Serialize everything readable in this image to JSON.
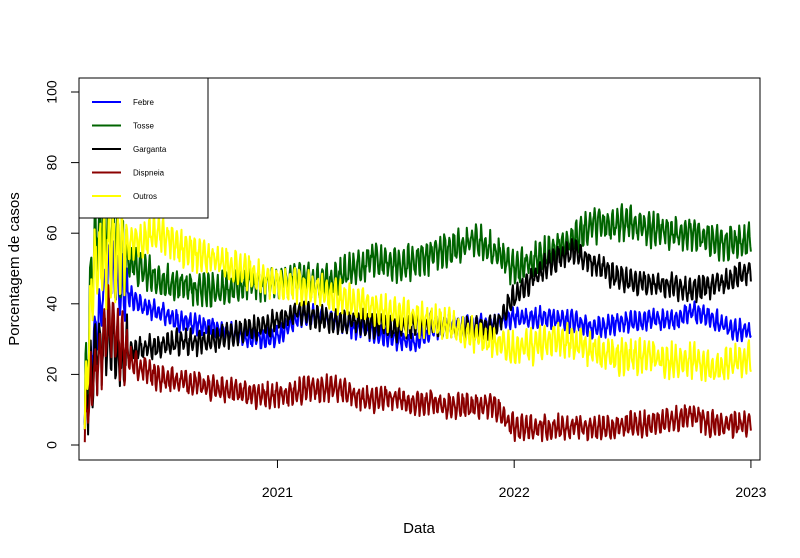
{
  "chart_data": {
    "type": "line",
    "xlabel": "Data",
    "ylabel": "Porcentagem de casos",
    "xlim": [
      "2020-03-01",
      "2023-01-15"
    ],
    "ylim": [
      0,
      100
    ],
    "x_ticks": [
      {
        "date": "2021-01-01",
        "label": "2021"
      },
      {
        "date": "2022-01-01",
        "label": "2022"
      },
      {
        "date": "2023-01-01",
        "label": "2023"
      }
    ],
    "y_ticks": [
      0,
      20,
      40,
      60,
      80,
      100
    ],
    "grid": false,
    "legend": "top-left",
    "series": [
      {
        "name": "Febre",
        "color": "#0000FF",
        "noise": 2.5,
        "points": [
          [
            "2020-03-10",
            10
          ],
          [
            "2020-03-25",
            30
          ],
          [
            "2020-04-15",
            50
          ],
          [
            "2020-05-01",
            45
          ],
          [
            "2020-06-01",
            40
          ],
          [
            "2020-07-01",
            38
          ],
          [
            "2020-08-01",
            35
          ],
          [
            "2020-09-01",
            34
          ],
          [
            "2020-10-01",
            33
          ],
          [
            "2020-11-01",
            31
          ],
          [
            "2020-12-01",
            30
          ],
          [
            "2021-01-01",
            31
          ],
          [
            "2021-02-01",
            36
          ],
          [
            "2021-03-01",
            37
          ],
          [
            "2021-04-01",
            35
          ],
          [
            "2021-05-01",
            33
          ],
          [
            "2021-06-01",
            32
          ],
          [
            "2021-07-01",
            30
          ],
          [
            "2021-08-01",
            29
          ],
          [
            "2021-09-01",
            33
          ],
          [
            "2021-10-01",
            34
          ],
          [
            "2021-11-01",
            34
          ],
          [
            "2021-12-01",
            35
          ],
          [
            "2022-01-01",
            36
          ],
          [
            "2022-02-01",
            36
          ],
          [
            "2022-03-01",
            36
          ],
          [
            "2022-04-01",
            35
          ],
          [
            "2022-05-01",
            33
          ],
          [
            "2022-06-01",
            34
          ],
          [
            "2022-07-01",
            35
          ],
          [
            "2022-08-01",
            36
          ],
          [
            "2022-09-01",
            35
          ],
          [
            "2022-10-01",
            38
          ],
          [
            "2022-11-01",
            36
          ],
          [
            "2022-12-01",
            33
          ],
          [
            "2023-01-01",
            32
          ]
        ]
      },
      {
        "name": "Tosse",
        "color": "#006400",
        "noise": 4,
        "points": [
          [
            "2020-03-10",
            10
          ],
          [
            "2020-03-25",
            60
          ],
          [
            "2020-04-15",
            62
          ],
          [
            "2020-05-01",
            55
          ],
          [
            "2020-06-01",
            50
          ],
          [
            "2020-07-01",
            47
          ],
          [
            "2020-08-01",
            45
          ],
          [
            "2020-09-01",
            44
          ],
          [
            "2020-10-01",
            44
          ],
          [
            "2020-11-01",
            45
          ],
          [
            "2020-12-01",
            46
          ],
          [
            "2021-01-01",
            46
          ],
          [
            "2021-02-01",
            48
          ],
          [
            "2021-03-01",
            46
          ],
          [
            "2021-04-01",
            47
          ],
          [
            "2021-05-01",
            50
          ],
          [
            "2021-06-01",
            53
          ],
          [
            "2021-07-01",
            51
          ],
          [
            "2021-08-01",
            52
          ],
          [
            "2021-09-01",
            54
          ],
          [
            "2021-10-01",
            56
          ],
          [
            "2021-11-01",
            58
          ],
          [
            "2021-12-01",
            55
          ],
          [
            "2022-01-01",
            50
          ],
          [
            "2022-02-01",
            52
          ],
          [
            "2022-03-01",
            55
          ],
          [
            "2022-04-01",
            58
          ],
          [
            "2022-05-01",
            62
          ],
          [
            "2022-06-01",
            63
          ],
          [
            "2022-07-01",
            63
          ],
          [
            "2022-08-01",
            61
          ],
          [
            "2022-09-01",
            60
          ],
          [
            "2022-10-01",
            60
          ],
          [
            "2022-11-01",
            58
          ],
          [
            "2022-12-01",
            57
          ],
          [
            "2023-01-01",
            58
          ]
        ]
      },
      {
        "name": "Garganta",
        "color": "#000000",
        "noise": 3,
        "points": [
          [
            "2020-03-10",
            10
          ],
          [
            "2020-03-25",
            25
          ],
          [
            "2020-04-15",
            30
          ],
          [
            "2020-05-01",
            26
          ],
          [
            "2020-06-01",
            27
          ],
          [
            "2020-07-01",
            28
          ],
          [
            "2020-08-01",
            29
          ],
          [
            "2020-09-01",
            29
          ],
          [
            "2020-10-01",
            30
          ],
          [
            "2020-11-01",
            32
          ],
          [
            "2020-12-01",
            33
          ],
          [
            "2021-01-01",
            35
          ],
          [
            "2021-02-01",
            38
          ],
          [
            "2021-03-01",
            36
          ],
          [
            "2021-04-01",
            35
          ],
          [
            "2021-05-01",
            35
          ],
          [
            "2021-06-01",
            34
          ],
          [
            "2021-07-01",
            33
          ],
          [
            "2021-08-01",
            34
          ],
          [
            "2021-09-01",
            34
          ],
          [
            "2021-10-01",
            33
          ],
          [
            "2021-11-01",
            33
          ],
          [
            "2021-12-01",
            33
          ],
          [
            "2022-01-01",
            42
          ],
          [
            "2022-02-01",
            48
          ],
          [
            "2022-03-01",
            52
          ],
          [
            "2022-04-01",
            55
          ],
          [
            "2022-05-01",
            52
          ],
          [
            "2022-06-01",
            48
          ],
          [
            "2022-07-01",
            46
          ],
          [
            "2022-08-01",
            46
          ],
          [
            "2022-09-01",
            45
          ],
          [
            "2022-10-01",
            44
          ],
          [
            "2022-11-01",
            45
          ],
          [
            "2022-12-01",
            47
          ],
          [
            "2023-01-01",
            50
          ]
        ]
      },
      {
        "name": "Dispneia",
        "color": "#8B0000",
        "noise": 3,
        "points": [
          [
            "2020-03-10",
            5
          ],
          [
            "2020-03-25",
            20
          ],
          [
            "2020-04-15",
            35
          ],
          [
            "2020-05-01",
            28
          ],
          [
            "2020-06-01",
            22
          ],
          [
            "2020-07-01",
            19
          ],
          [
            "2020-08-01",
            18
          ],
          [
            "2020-09-01",
            17
          ],
          [
            "2020-10-01",
            16
          ],
          [
            "2020-11-01",
            15
          ],
          [
            "2020-12-01",
            14
          ],
          [
            "2021-01-01",
            14
          ],
          [
            "2021-02-01",
            15
          ],
          [
            "2021-03-01",
            16
          ],
          [
            "2021-04-01",
            16
          ],
          [
            "2021-05-01",
            14
          ],
          [
            "2021-06-01",
            13
          ],
          [
            "2021-07-01",
            13
          ],
          [
            "2021-08-01",
            12
          ],
          [
            "2021-09-01",
            12
          ],
          [
            "2021-10-01",
            11
          ],
          [
            "2021-11-01",
            11
          ],
          [
            "2021-12-01",
            11
          ],
          [
            "2022-01-01",
            5
          ],
          [
            "2022-02-01",
            5
          ],
          [
            "2022-03-01",
            5
          ],
          [
            "2022-04-01",
            5
          ],
          [
            "2022-05-01",
            5
          ],
          [
            "2022-06-01",
            5
          ],
          [
            "2022-07-01",
            6
          ],
          [
            "2022-08-01",
            6
          ],
          [
            "2022-09-01",
            7
          ],
          [
            "2022-10-01",
            9
          ],
          [
            "2022-11-01",
            6
          ],
          [
            "2022-12-01",
            6
          ],
          [
            "2023-01-01",
            6
          ]
        ]
      },
      {
        "name": "Outros",
        "color": "#FFFF00",
        "noise": 4,
        "points": [
          [
            "2020-03-10",
            10
          ],
          [
            "2020-03-25",
            50
          ],
          [
            "2020-04-15",
            55
          ],
          [
            "2020-05-01",
            55
          ],
          [
            "2020-06-01",
            58
          ],
          [
            "2020-07-01",
            60
          ],
          [
            "2020-08-01",
            56
          ],
          [
            "2020-09-01",
            54
          ],
          [
            "2020-10-01",
            52
          ],
          [
            "2020-11-01",
            50
          ],
          [
            "2020-12-01",
            48
          ],
          [
            "2021-01-01",
            46
          ],
          [
            "2021-02-01",
            45
          ],
          [
            "2021-03-01",
            44
          ],
          [
            "2021-04-01",
            42
          ],
          [
            "2021-05-01",
            40
          ],
          [
            "2021-06-01",
            38
          ],
          [
            "2021-07-01",
            37
          ],
          [
            "2021-08-01",
            36
          ],
          [
            "2021-09-01",
            35
          ],
          [
            "2021-10-01",
            33
          ],
          [
            "2021-11-01",
            31
          ],
          [
            "2021-12-01",
            29
          ],
          [
            "2022-01-01",
            27
          ],
          [
            "2022-02-01",
            28
          ],
          [
            "2022-03-01",
            30
          ],
          [
            "2022-04-01",
            29
          ],
          [
            "2022-05-01",
            27
          ],
          [
            "2022-06-01",
            25
          ],
          [
            "2022-07-01",
            25
          ],
          [
            "2022-08-01",
            25
          ],
          [
            "2022-09-01",
            24
          ],
          [
            "2022-10-01",
            24
          ],
          [
            "2022-11-01",
            22
          ],
          [
            "2022-12-01",
            23
          ],
          [
            "2023-01-01",
            25
          ]
        ]
      }
    ]
  }
}
